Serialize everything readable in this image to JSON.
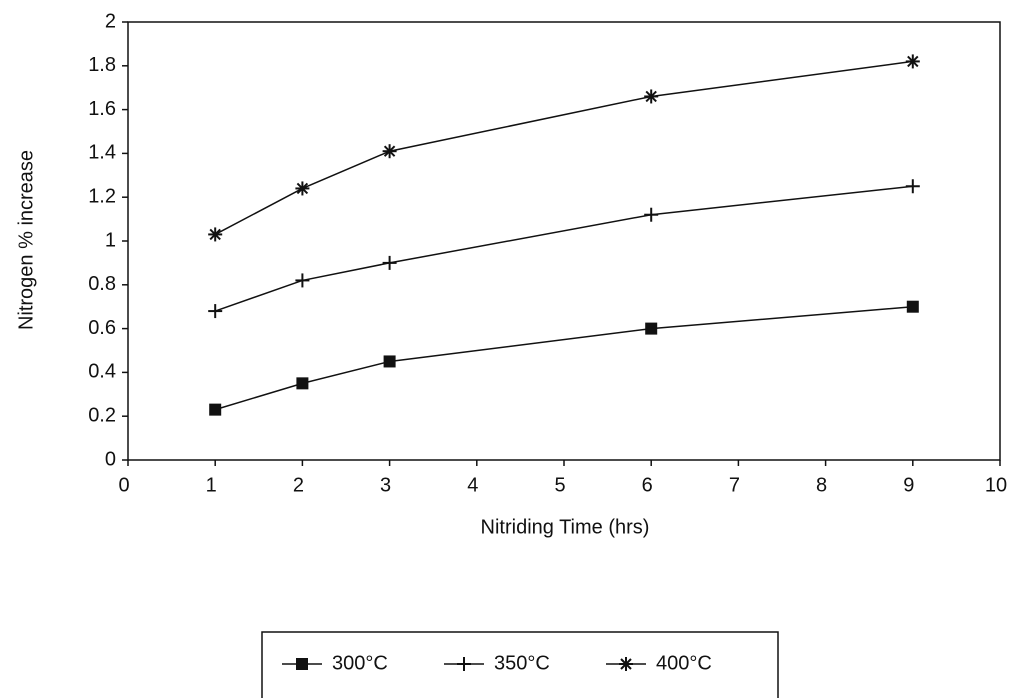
{
  "chart_data": {
    "type": "line",
    "x_label": "Nitriding Time (hrs)",
    "y_label": "Nitrogen % increase",
    "x": [
      1,
      2,
      3,
      6,
      9
    ],
    "series": [
      {
        "name": "300°C",
        "color": "#111111",
        "marker": "square",
        "values": [
          0.23,
          0.35,
          0.45,
          0.6,
          0.7
        ]
      },
      {
        "name": "350°C",
        "color": "#111111",
        "marker": "plus",
        "values": [
          0.68,
          0.82,
          0.9,
          1.12,
          1.25
        ]
      },
      {
        "name": "400°C",
        "color": "#111111",
        "marker": "asterisk",
        "values": [
          1.03,
          1.24,
          1.41,
          1.66,
          1.82
        ]
      }
    ],
    "xlim": [
      0,
      10
    ],
    "xticks": [
      0,
      1,
      2,
      3,
      4,
      5,
      6,
      7,
      8,
      9,
      10
    ],
    "ylim": [
      0,
      2
    ],
    "yticks": [
      0,
      0.2,
      0.4,
      0.6,
      0.8,
      1,
      1.2,
      1.4,
      1.6,
      1.8,
      2
    ],
    "grid": false,
    "legend": "bottom"
  }
}
